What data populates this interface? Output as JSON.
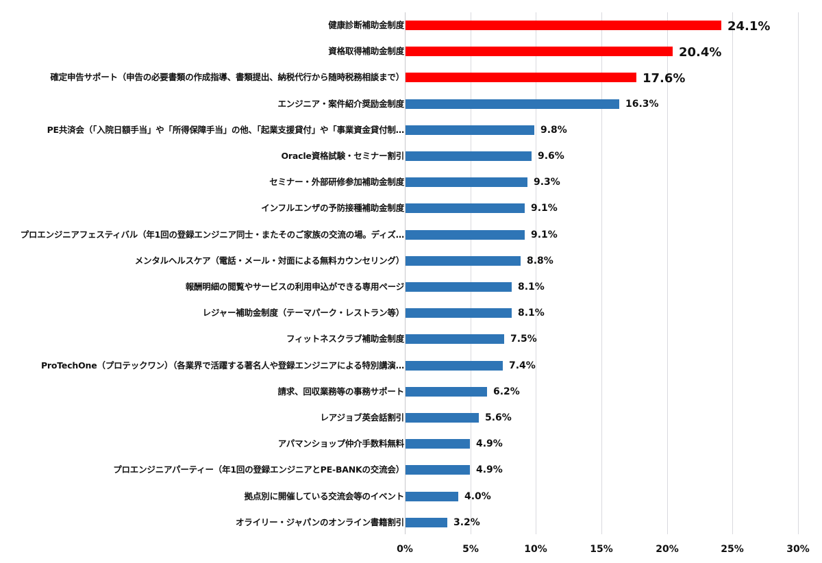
{
  "chart_data": {
    "type": "bar",
    "orientation": "horizontal",
    "title": "",
    "xlabel": "",
    "ylabel": "",
    "xlim": [
      0,
      30
    ],
    "grid": true,
    "legend": null,
    "x_ticks": [
      "0%",
      "5%",
      "10%",
      "15%",
      "20%",
      "25%",
      "30%"
    ],
    "highlight_color": "#ff0000",
    "default_color": "#2e75b6",
    "categories": [
      "健康診断補助金制度",
      "資格取得補助金制度",
      "確定申告サポート（申告の必要書類の作成指導、書類提出、納税代行から随時税務相談まで）",
      "エンジニア・案件紹介奨励金制度",
      "PE共済会（「入院日額手当」や「所得保障手当」の他、「起業支援貸付」や「事業資金貸付制…",
      "Oracle資格試験・セミナー割引",
      "セミナー・外部研修参加補助金制度",
      "インフルエンザの予防接種補助金制度",
      "プロエンジニアフェスティバル（年1回の登録エンジニア同士・またそのご家族の交流の場。ディズ…",
      "メンタルヘルスケア（電話・メール・対面による無料カウンセリング）",
      "報酬明細の閲覧やサービスの利用申込ができる専用ページ",
      "レジャー補助金制度（テーマパーク・レストラン等）",
      "フィットネスクラブ補助金制度",
      "ProTechOne（プロテックワン）（各業界で活躍する著名人や登録エンジニアによる特別講演…",
      "請求、回収業務等の事務サポート",
      "レアジョブ英会話割引",
      "アパマンショップ仲介手数料無料",
      "プロエンジニアパーティー（年1回の登録エンジニアとPE-BANKの交流会）",
      "拠点別に開催している交流会等のイベント",
      "オライリー・ジャパンのオンライン書籍割引"
    ],
    "values": [
      24.1,
      20.4,
      17.6,
      16.3,
      9.8,
      9.6,
      9.3,
      9.1,
      9.1,
      8.8,
      8.1,
      8.1,
      7.5,
      7.4,
      6.2,
      5.6,
      4.9,
      4.9,
      4.0,
      3.2
    ],
    "value_labels": [
      "24.1%",
      "20.4%",
      "17.6%",
      "16.3%",
      "9.8%",
      "9.6%",
      "9.3%",
      "9.1%",
      "9.1%",
      "8.8%",
      "8.1%",
      "8.1%",
      "7.5%",
      "7.4%",
      "6.2%",
      "5.6%",
      "4.9%",
      "4.9%",
      "4.0%",
      "3.2%"
    ],
    "highlighted": [
      true,
      true,
      true,
      false,
      false,
      false,
      false,
      false,
      false,
      false,
      false,
      false,
      false,
      false,
      false,
      false,
      false,
      false,
      false,
      false
    ]
  }
}
